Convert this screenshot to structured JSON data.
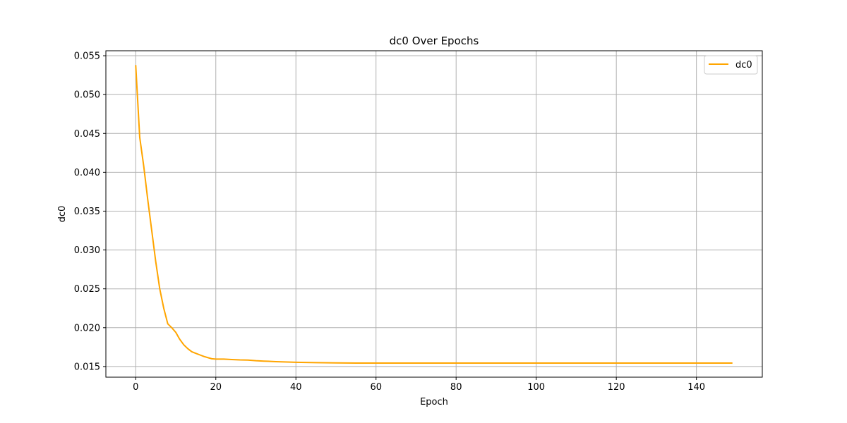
{
  "chart_data": {
    "type": "line",
    "title": "dc0 Over Epochs",
    "xlabel": "Epoch",
    "ylabel": "dc0",
    "xlim": [
      -7.45,
      156.45
    ],
    "ylim": [
      0.01363,
      0.05564
    ],
    "xticks": [
      0,
      20,
      40,
      60,
      80,
      100,
      120,
      140
    ],
    "xtick_labels": [
      "0",
      "20",
      "40",
      "60",
      "80",
      "100",
      "120",
      "140"
    ],
    "yticks": [
      0.015,
      0.02,
      0.025,
      0.03,
      0.035,
      0.04,
      0.045,
      0.05,
      0.055
    ],
    "ytick_labels": [
      "0.015",
      "0.020",
      "0.025",
      "0.030",
      "0.035",
      "0.040",
      "0.045",
      "0.050",
      "0.055"
    ],
    "grid": true,
    "legend_position": "top-right",
    "series": [
      {
        "name": "dc0",
        "color": "#ffa500",
        "x": [
          0,
          1,
          2,
          3,
          4,
          5,
          6,
          7,
          8,
          9,
          10,
          11,
          12,
          13,
          14,
          15,
          16,
          17,
          18,
          19,
          20,
          22,
          24,
          26,
          28,
          30,
          32,
          35,
          40,
          45,
          50,
          55,
          60,
          70,
          80,
          90,
          100,
          110,
          120,
          130,
          140,
          149
        ],
        "y": [
          0.0538,
          0.0445,
          0.0408,
          0.0365,
          0.0325,
          0.0285,
          0.025,
          0.0225,
          0.0205,
          0.02,
          0.0194,
          0.0185,
          0.0178,
          0.0173,
          0.0169,
          0.0167,
          0.0165,
          0.0163,
          0.01615,
          0.016,
          0.01595,
          0.01595,
          0.0159,
          0.01585,
          0.01583,
          0.01575,
          0.0157,
          0.01563,
          0.01555,
          0.0155,
          0.01547,
          0.01545,
          0.01545,
          0.01545,
          0.01545,
          0.01545,
          0.01545,
          0.01545,
          0.01545,
          0.01545,
          0.01545,
          0.01545
        ]
      }
    ]
  }
}
